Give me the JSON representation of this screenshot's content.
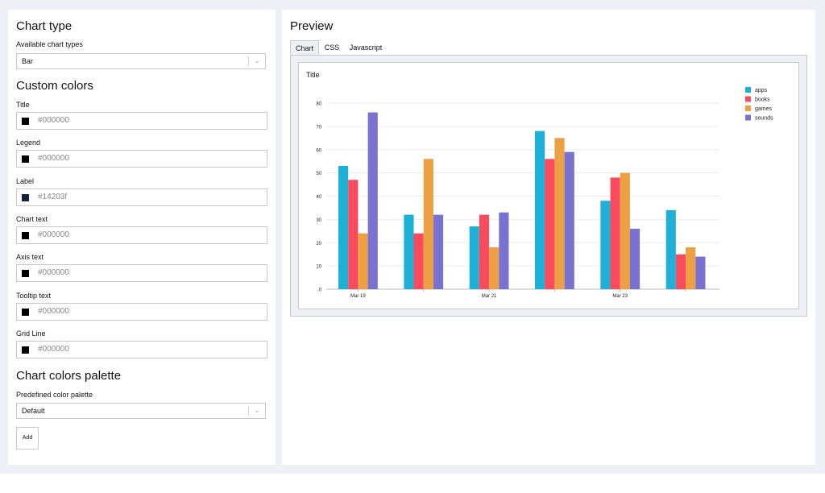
{
  "left": {
    "chart_type_heading": "Chart type",
    "available_label": "Available chart types",
    "chart_type_value": "Bar",
    "custom_colors_heading": "Custom colors",
    "fields": [
      {
        "label": "Title",
        "value": "#000000",
        "swatch": "#000000"
      },
      {
        "label": "Legend",
        "value": "#000000",
        "swatch": "#000000"
      },
      {
        "label": "Label",
        "value": "#14203f",
        "swatch": "#14203f"
      },
      {
        "label": "Chart text",
        "value": "#000000",
        "swatch": "#000000"
      },
      {
        "label": "Axis text",
        "value": "#000000",
        "swatch": "#000000"
      },
      {
        "label": "Tooltip text",
        "value": "#000000",
        "swatch": "#000000"
      },
      {
        "label": "Grid Line",
        "value": "#000000",
        "swatch": "#000000"
      }
    ],
    "palette_heading": "Chart colors palette",
    "palette_label": "Predefined color palette",
    "palette_value": "Default",
    "add_label": "Add",
    "chevron_icon": "chevron-down-icon"
  },
  "preview": {
    "heading": "Preview",
    "tabs": [
      "Chart",
      "CSS",
      "Javascript"
    ],
    "active_tab": "Chart"
  },
  "chart_data": {
    "type": "bar",
    "title": "Title",
    "categories": [
      "Mar 19",
      "",
      "Mar 21",
      "",
      "Mar 23",
      ""
    ],
    "series": [
      {
        "name": "apps",
        "color": "#1eb0d6",
        "values": [
          53,
          32,
          27,
          68,
          38,
          34
        ]
      },
      {
        "name": "books",
        "color": "#f94b5e",
        "values": [
          47,
          24,
          32,
          56,
          48,
          15
        ]
      },
      {
        "name": "games",
        "color": "#eda043",
        "values": [
          24,
          56,
          18,
          65,
          50,
          18
        ]
      },
      {
        "name": "sounds",
        "color": "#7a72d0",
        "values": [
          76,
          32,
          33,
          59,
          26,
          14
        ]
      }
    ],
    "ylim": [
      0,
      80
    ],
    "yticks": [
      0,
      10,
      20,
      30,
      40,
      50,
      60,
      70,
      80
    ],
    "grid": true,
    "legend": "top-right"
  }
}
